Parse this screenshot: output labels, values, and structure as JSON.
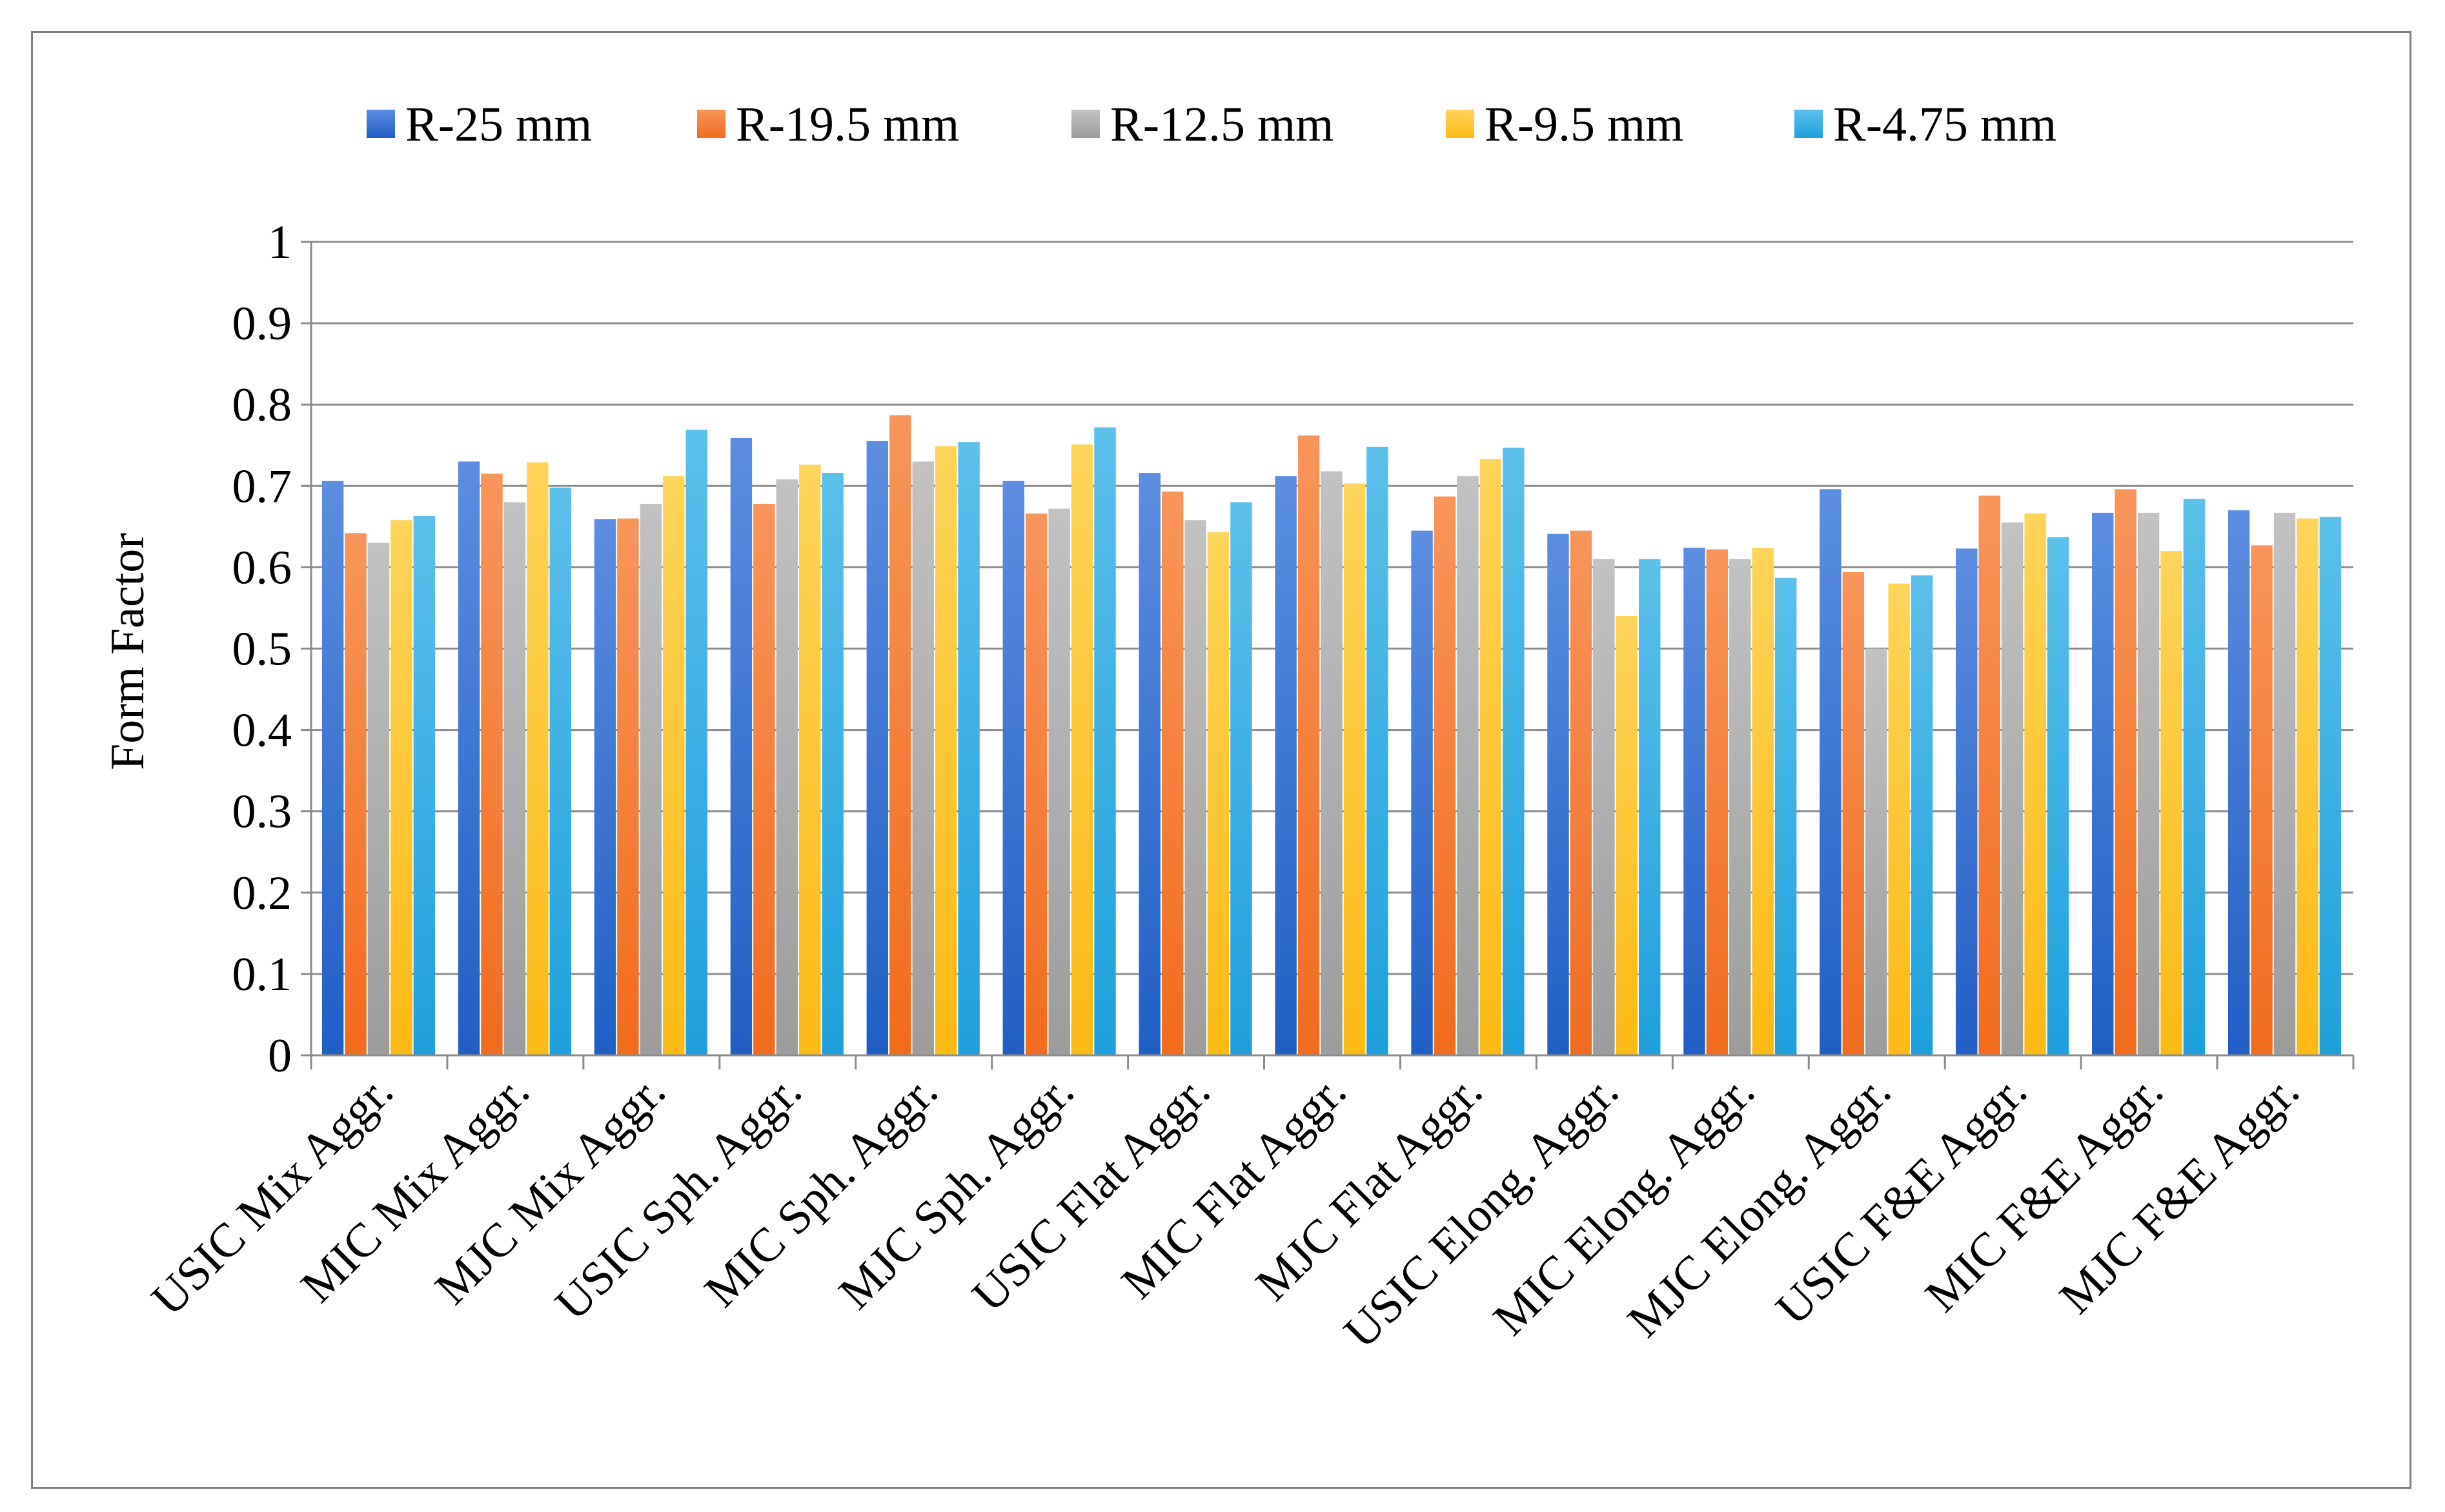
{
  "chart_data": {
    "type": "bar",
    "title": "",
    "xlabel": "",
    "ylabel": "Form Factor",
    "ylim": [
      0,
      1
    ],
    "yticks": [
      "0",
      "0.1",
      "0.2",
      "0.3",
      "0.4",
      "0.5",
      "0.6",
      "0.7",
      "0.8",
      "0.9",
      "1"
    ],
    "grid": true,
    "legend_position": "top",
    "categories": [
      "USIC Mix Aggr.",
      "MIC Mix Aggr.",
      "MJC Mix Aggr.",
      "USIC Sph. Aggr.",
      "MIC Sph. Aggr.",
      "MJC Sph. Aggr.",
      "USIC Flat Aggr.",
      "MIC Flat Aggr.",
      "MJC Flat Aggr.",
      "USIC Elong. Aggr.",
      "MIC Elong. Aggr.",
      "MJC Elong. Aggr.",
      "USIC F&E Aggr.",
      "MIC F&E Aggr.",
      "MJC F&E Aggr."
    ],
    "series": [
      {
        "name": "R-25 mm",
        "color": "#1f5fc4",
        "color_light": "#5b8ee0",
        "values": [
          0.706,
          0.73,
          0.659,
          0.759,
          0.755,
          0.706,
          0.716,
          0.712,
          0.645,
          0.641,
          0.624,
          0.696,
          0.623,
          0.667,
          0.67
        ]
      },
      {
        "name": "R-19.5 mm",
        "color": "#f26b1d",
        "color_light": "#f8955a",
        "values": [
          0.642,
          0.715,
          0.66,
          0.678,
          0.787,
          0.666,
          0.693,
          0.762,
          0.687,
          0.645,
          0.622,
          0.594,
          0.688,
          0.696,
          0.627
        ]
      },
      {
        "name": "R-12.5 mm",
        "color": "#9c9c9c",
        "color_light": "#c2c2c2",
        "values": [
          0.63,
          0.68,
          0.678,
          0.708,
          0.73,
          0.672,
          0.658,
          0.718,
          0.712,
          0.61,
          0.61,
          0.5,
          0.655,
          0.667,
          0.667
        ]
      },
      {
        "name": "R-9.5 mm",
        "color": "#fdb913",
        "color_light": "#ffd45a",
        "values": [
          0.658,
          0.729,
          0.712,
          0.726,
          0.749,
          0.751,
          0.643,
          0.703,
          0.733,
          0.54,
          0.624,
          0.58,
          0.666,
          0.62,
          0.66
        ]
      },
      {
        "name": "R-4.75 mm",
        "color": "#1ea0dc",
        "color_light": "#5cc0ec",
        "values": [
          0.663,
          0.698,
          0.769,
          0.716,
          0.754,
          0.772,
          0.68,
          0.748,
          0.747,
          0.61,
          0.587,
          0.59,
          0.637,
          0.684,
          0.662
        ]
      }
    ]
  }
}
